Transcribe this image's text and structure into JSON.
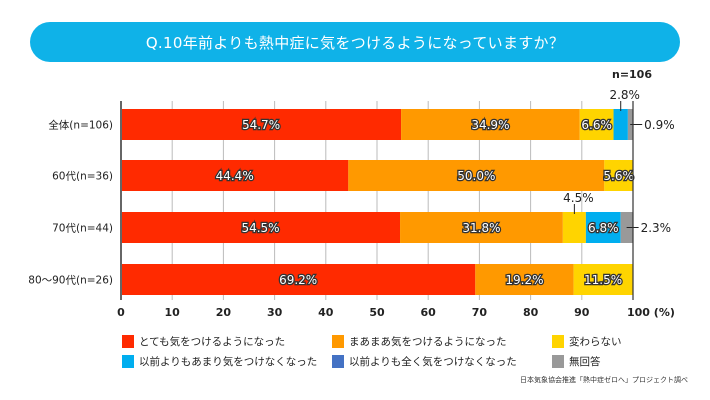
{
  "header": {
    "title": "Q.10年前よりも熱中症に気をつけるようになっていますか？",
    "n_total": "n=106"
  },
  "chart_data": {
    "type": "bar",
    "orientation": "horizontal",
    "stacked": true,
    "title": "Q.10年前よりも熱中症に気をつけるようになっていますか？",
    "xlabel": "(%)",
    "ylabel": "",
    "xlim": [
      0,
      100
    ],
    "xticks": [
      0,
      10,
      20,
      30,
      40,
      50,
      60,
      70,
      80,
      90,
      100
    ],
    "xtick_labels": [
      "0",
      "10",
      "20",
      "30",
      "40",
      "50",
      "60",
      "70",
      "80",
      "90",
      "100 (%)"
    ],
    "grid": true,
    "legend_position": "bottom",
    "categories": [
      "全体(n=106)",
      "60代(n=36)",
      "70代(n=44)",
      "80〜90代(n=26)"
    ],
    "series": [
      {
        "name": "とても気をつけるようになった",
        "color": "#ff2a00",
        "values": [
          54.7,
          44.4,
          54.5,
          69.2
        ]
      },
      {
        "name": "まあまあ気をつけるようになった",
        "color": "#ff9900",
        "values": [
          34.9,
          50.0,
          31.8,
          19.2
        ]
      },
      {
        "name": "変わらない",
        "color": "#ffd400",
        "values": [
          6.6,
          5.6,
          4.5,
          11.5
        ]
      },
      {
        "name": "以前よりもあまり気をつけなくなった",
        "color": "#00aeef",
        "values": [
          2.8,
          0,
          6.8,
          0
        ]
      },
      {
        "name": "以前よりも全く気をつけなくなった",
        "color": "#4472c4",
        "values": [
          0,
          0,
          0,
          0
        ]
      },
      {
        "name": "無回答",
        "color": "#999999",
        "values": [
          0.9,
          0,
          2.3,
          0
        ]
      }
    ],
    "data_labels": [
      [
        "54.7%",
        "34.9%",
        "6.6%",
        "2.8%",
        "",
        "0.9%"
      ],
      [
        "44.4%",
        "50.0%",
        "5.6%",
        "",
        "",
        ""
      ],
      [
        "54.5%",
        "31.8%",
        "4.5%",
        "6.8%",
        "",
        "2.3%"
      ],
      [
        "69.2%",
        "19.2%",
        "11.5%",
        "",
        "",
        ""
      ]
    ],
    "callout_labels": [
      {
        "row": 0,
        "series": 3,
        "text": "2.8%",
        "position": "above"
      },
      {
        "row": 0,
        "series": 5,
        "text": "0.9%",
        "position": "right"
      },
      {
        "row": 2,
        "series": 2,
        "text": "4.5%",
        "position": "above"
      },
      {
        "row": 2,
        "series": 5,
        "text": "2.3%",
        "position": "right"
      }
    ]
  },
  "source": "日本気象協会推進「熱中症ゼロへ」プロジェクト調べ"
}
